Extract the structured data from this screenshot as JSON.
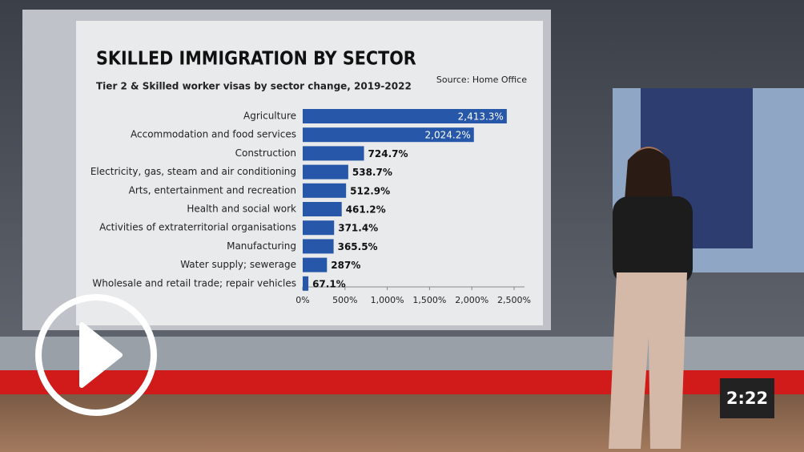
{
  "chart_data": {
    "type": "hbar",
    "title": "SKILLED IMMIGRATION BY SECTOR",
    "subtitle": "Tier 2 & Skilled worker visas by sector change, 2019-2022",
    "source": "Source: Home Office",
    "categories": [
      "Agriculture",
      "Accommodation and food services",
      "Construction",
      "Electricity, gas, steam and air conditioning",
      "Arts, entertainment and recreation",
      "Health and social work",
      "Activities of extraterritorial organisations",
      "Manufacturing",
      "Water supply; sewerage",
      "Wholesale and retail trade; repair vehicles"
    ],
    "values": [
      2413.3,
      2024.2,
      724.7,
      538.7,
      512.9,
      461.2,
      371.4,
      365.5,
      287,
      67.1
    ],
    "value_labels": [
      "2,413.3%",
      "2,024.2%",
      "724.7%",
      "538.7%",
      "512.9%",
      "461.2%",
      "371.4%",
      "365.5%",
      "287%",
      "67.1%"
    ],
    "color": "#2757a8",
    "xlim": [
      0,
      2500
    ],
    "xticks": [
      {
        "value": 0,
        "label": "0%"
      },
      {
        "value": 500,
        "label": "500%"
      },
      {
        "value": 1000,
        "label": "1,000%"
      },
      {
        "value": 1500,
        "label": "1,500%"
      },
      {
        "value": 2000,
        "label": "2,000%"
      },
      {
        "value": 2500,
        "label": "2,500%"
      }
    ]
  },
  "video": {
    "duration": "2:22"
  }
}
